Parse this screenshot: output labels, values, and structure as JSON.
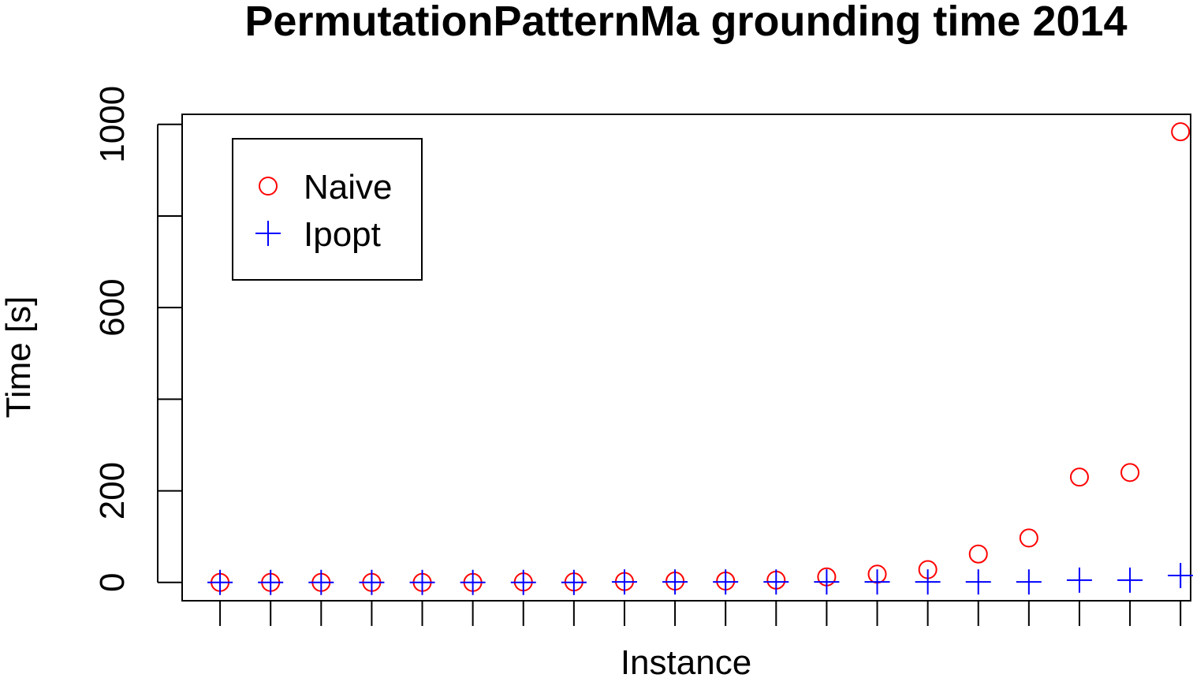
{
  "chart_data": {
    "type": "scatter",
    "title": "PermutationPatternMa  grounding time 2014",
    "xlabel": "Instance",
    "ylabel": "Time [s]",
    "xlim": [
      0.25,
      20.2
    ],
    "ylim": [
      -40,
      1022
    ],
    "x": [
      1,
      2,
      3,
      4,
      5,
      6,
      7,
      8,
      9,
      10,
      11,
      12,
      13,
      14,
      15,
      16,
      17,
      18,
      19,
      20
    ],
    "y_ticks": [
      0,
      200,
      400,
      600,
      800,
      1000
    ],
    "y_tick_labels": [
      "0",
      "200",
      "",
      "600",
      "",
      "1000"
    ],
    "series": [
      {
        "name": "Naive",
        "marker": "circle",
        "color": "#ff0000",
        "values": [
          0,
          0,
          0,
          0,
          0,
          0,
          1,
          1,
          2,
          3,
          3,
          5,
          12,
          18,
          28,
          62,
          97,
          230,
          240,
          984
        ]
      },
      {
        "name": "Ipopt",
        "marker": "plus",
        "color": "#0000ff",
        "values": [
          0,
          0,
          0,
          0,
          0,
          0,
          0,
          0,
          1,
          1,
          1,
          1,
          1,
          1,
          1,
          1,
          1,
          5,
          5,
          15
        ]
      }
    ],
    "legend": "top-left",
    "grid": false
  }
}
